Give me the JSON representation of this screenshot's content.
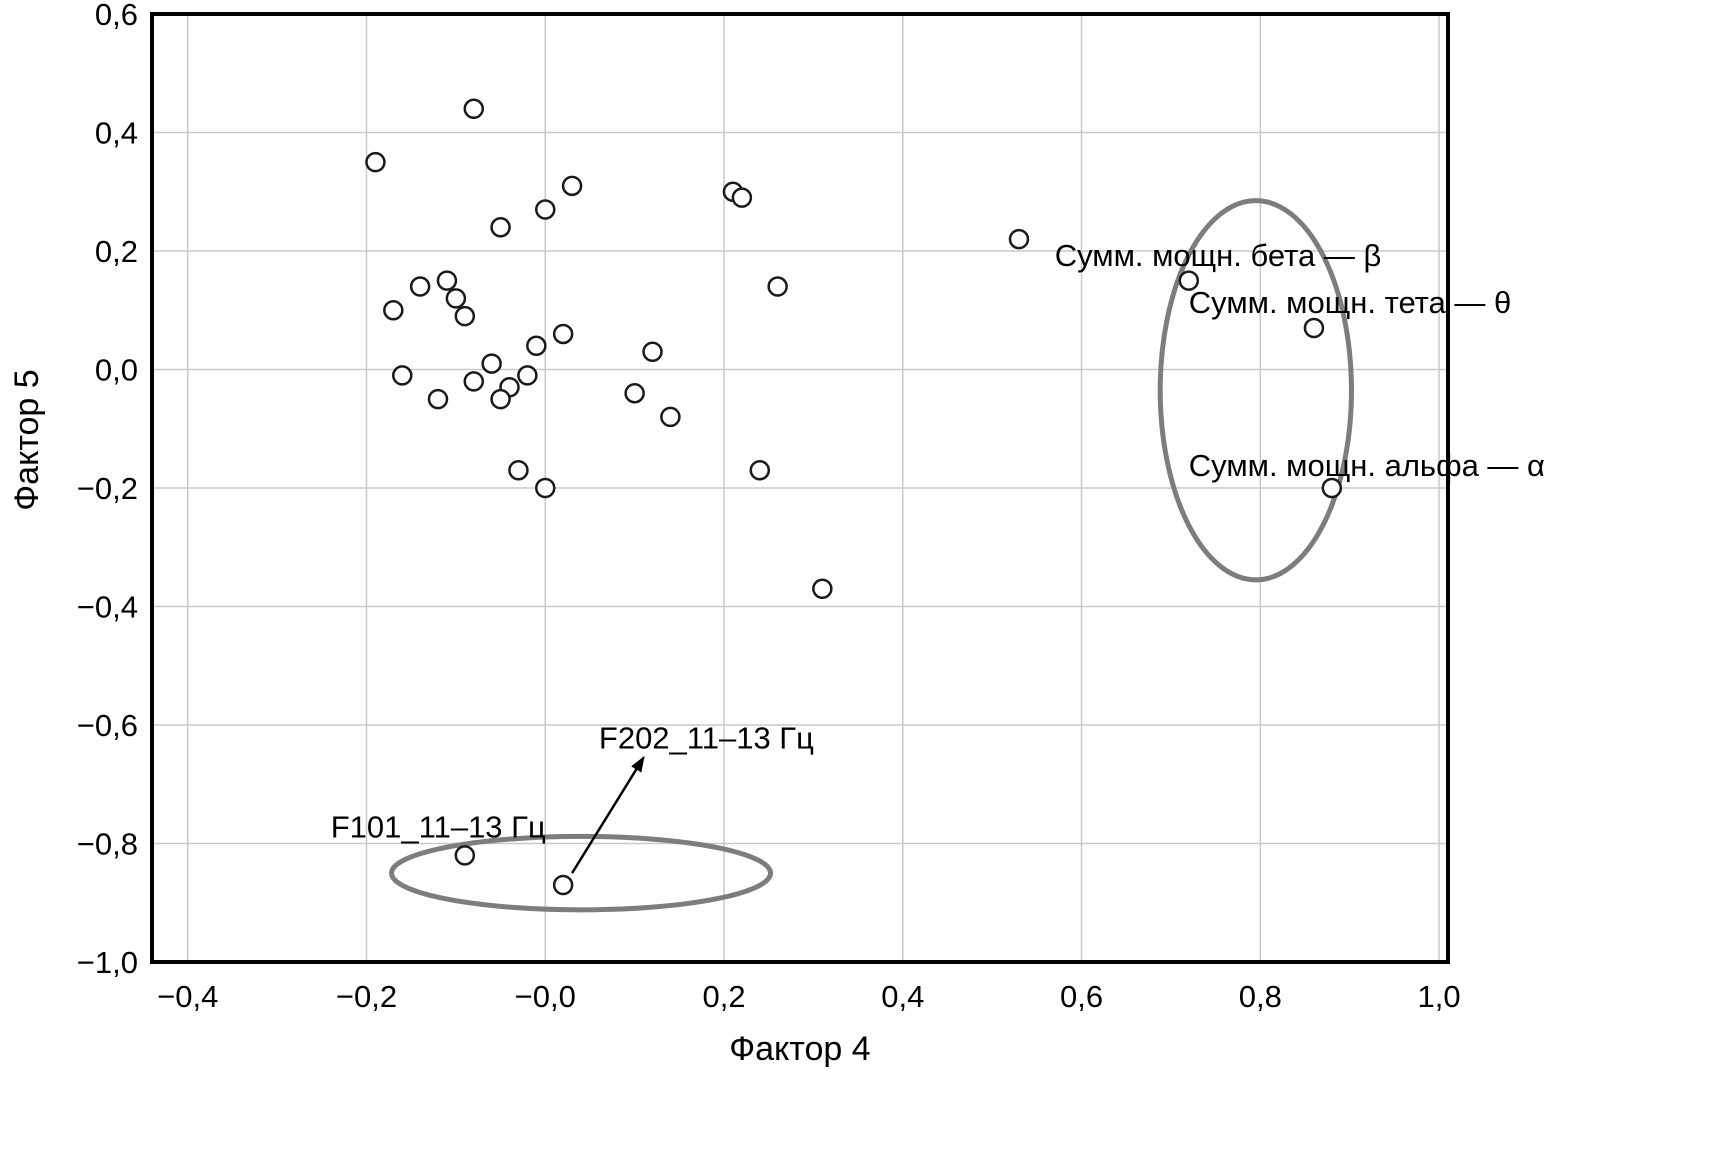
{
  "chart_data": {
    "type": "scatter",
    "title": "",
    "xlabel": "Фактор 4",
    "ylabel": "Фактор 5",
    "xlim": [
      -0.44,
      1.01
    ],
    "ylim": [
      -1.0,
      0.6
    ],
    "grid": true,
    "legend": "none",
    "colors": {
      "grid": "#c9c9c9",
      "axis": "#000000",
      "point": "#1a1a1a",
      "ellipse": "#7d7d7d"
    },
    "x_ticks": [
      {
        "v": -0.4,
        "label": "−0,4"
      },
      {
        "v": -0.2,
        "label": "−0,2"
      },
      {
        "v": 0.0,
        "label": "−0,0"
      },
      {
        "v": 0.2,
        "label": "0,2"
      },
      {
        "v": 0.4,
        "label": "0,4"
      },
      {
        "v": 0.6,
        "label": "0,6"
      },
      {
        "v": 0.8,
        "label": "0,8"
      },
      {
        "v": 1.0,
        "label": "1,0"
      }
    ],
    "y_ticks": [
      {
        "v": 0.6,
        "label": "0,6"
      },
      {
        "v": 0.4,
        "label": "0,4"
      },
      {
        "v": 0.2,
        "label": "0,2"
      },
      {
        "v": 0.0,
        "label": "0,0"
      },
      {
        "v": -0.2,
        "label": "−0,2"
      },
      {
        "v": -0.4,
        "label": "−0,4"
      },
      {
        "v": -0.6,
        "label": "−0,6"
      },
      {
        "v": -0.8,
        "label": "−0,8"
      },
      {
        "v": -1.0,
        "label": "−1,0"
      }
    ],
    "points": [
      [
        -0.08,
        0.44
      ],
      [
        -0.19,
        0.35
      ],
      [
        0.03,
        0.31
      ],
      [
        0.21,
        0.3
      ],
      [
        0.22,
        0.29
      ],
      [
        0.0,
        0.27
      ],
      [
        -0.05,
        0.24
      ],
      [
        0.53,
        0.22
      ],
      [
        -0.14,
        0.14
      ],
      [
        -0.11,
        0.15
      ],
      [
        -0.1,
        0.12
      ],
      [
        0.26,
        0.14
      ],
      [
        -0.17,
        0.1
      ],
      [
        -0.09,
        0.09
      ],
      [
        -0.01,
        0.04
      ],
      [
        0.02,
        0.06
      ],
      [
        0.12,
        0.03
      ],
      [
        -0.06,
        0.01
      ],
      [
        -0.16,
        -0.01
      ],
      [
        -0.08,
        -0.02
      ],
      [
        -0.04,
        -0.03
      ],
      [
        -0.02,
        -0.01
      ],
      [
        -0.12,
        -0.05
      ],
      [
        -0.05,
        -0.05
      ],
      [
        0.1,
        -0.04
      ],
      [
        0.14,
        -0.08
      ],
      [
        -0.03,
        -0.17
      ],
      [
        0.0,
        -0.2
      ],
      [
        0.24,
        -0.17
      ],
      [
        0.31,
        -0.37
      ]
    ],
    "labeled_points": [
      {
        "label": "Сумм. мощн. бета — β",
        "x": 0.72,
        "y": 0.15,
        "label_x": 0.57,
        "label_y": 0.175
      },
      {
        "label": "Сумм. мощн. тета — θ",
        "x": 0.86,
        "y": 0.07,
        "label_x": 0.72,
        "label_y": 0.095
      },
      {
        "label": "Сумм. мощн. альфа — α",
        "x": 0.88,
        "y": -0.2,
        "label_x": 0.72,
        "label_y": -0.18
      },
      {
        "label": "F101_11–13 Гц",
        "x": -0.09,
        "y": -0.82,
        "label_x": -0.24,
        "label_y": -0.79
      },
      {
        "label": "F202_11–13 Гц",
        "x": 0.02,
        "y": -0.87,
        "label_x": 0.06,
        "label_y": -0.64
      }
    ],
    "ellipses": [
      {
        "cx": 0.795,
        "cy": -0.035,
        "rx": 0.107,
        "ry": 0.32
      },
      {
        "cx": 0.04,
        "cy": -0.85,
        "rx": 0.212,
        "ry": 0.062
      }
    ],
    "arrow": {
      "x1": 0.03,
      "y1": -0.85,
      "x2": 0.11,
      "y2": -0.655
    }
  }
}
